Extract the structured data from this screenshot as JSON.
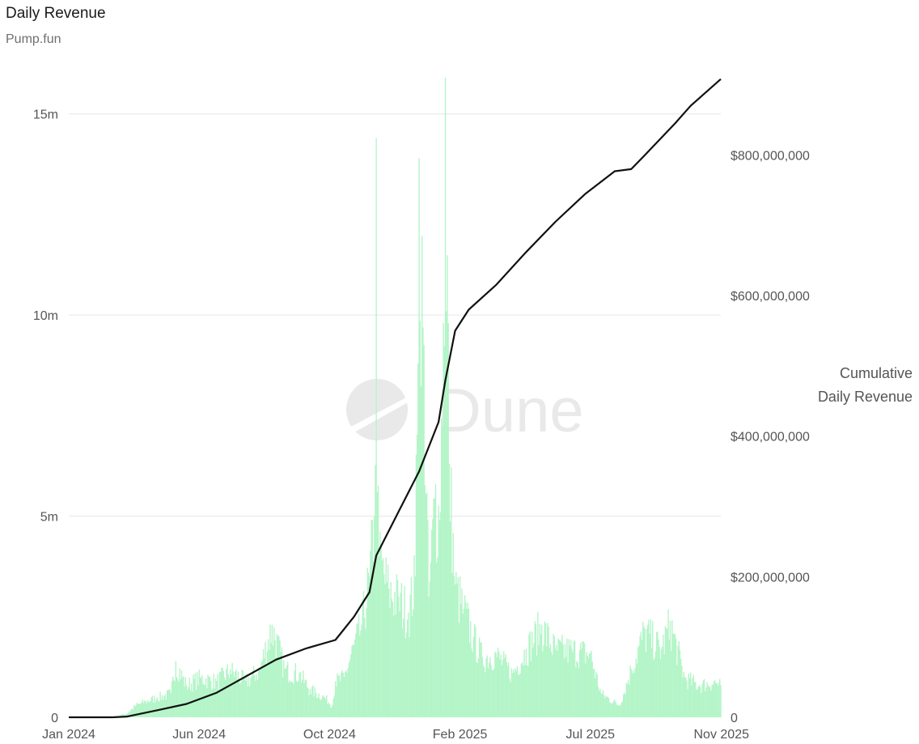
{
  "header": {
    "title": "Daily Revenue",
    "subtitle": "Pump.fun"
  },
  "watermark": "Dune",
  "colors": {
    "bars": "#b4f5c8",
    "line": "#111111",
    "grid": "#e6e6e6",
    "watermark": "#e9e9e9"
  },
  "chart_data": {
    "type": "bar+line",
    "title": "Daily Revenue",
    "subtitle": "Pump.fun",
    "x_axis": {
      "type": "date",
      "range": [
        "2024-01-01",
        "2025-11-01"
      ],
      "tick_labels": [
        "Jan 2024",
        "Jun 2024",
        "Oct 2024",
        "Feb 2025",
        "Jul 2025",
        "Nov 2025"
      ]
    },
    "y_left": {
      "range": [
        0,
        15900000
      ],
      "ticks": [
        0,
        5000000,
        10000000,
        15000000
      ],
      "tick_labels": [
        "0",
        "5m",
        "10m",
        "15m"
      ]
    },
    "y_right": {
      "title_lines": [
        "Cumulative",
        "Daily Revenue"
      ],
      "range": [
        0,
        910000000
      ],
      "ticks": [
        0,
        200000000,
        400000000,
        600000000,
        800000000
      ],
      "tick_labels": [
        "0",
        "$200,000,000",
        "$400,000,000",
        "$600,000,000",
        "$800,000,000"
      ]
    },
    "grid": true,
    "series": [
      {
        "type": "bar",
        "axis": "left",
        "color": "#b4f5c8",
        "points": [
          [
            "2024-01-01",
            0
          ],
          [
            "2024-02-15",
            0
          ],
          [
            "2024-03-01",
            100000
          ],
          [
            "2024-03-10",
            300000
          ],
          [
            "2024-03-20",
            400000
          ],
          [
            "2024-04-01",
            500000
          ],
          [
            "2024-04-15",
            600000
          ],
          [
            "2024-04-20",
            1400000
          ],
          [
            "2024-05-01",
            800000
          ],
          [
            "2024-05-15",
            1000000
          ],
          [
            "2024-06-01",
            900000
          ],
          [
            "2024-06-15",
            1200000
          ],
          [
            "2024-07-01",
            900000
          ],
          [
            "2024-07-15",
            1200000
          ],
          [
            "2024-07-28",
            2300000
          ],
          [
            "2024-08-10",
            1200000
          ],
          [
            "2024-08-25",
            1100000
          ],
          [
            "2024-09-05",
            700000
          ],
          [
            "2024-09-20",
            500000
          ],
          [
            "2024-09-28",
            300000
          ],
          [
            "2024-10-01",
            900000
          ],
          [
            "2024-10-10",
            1000000
          ],
          [
            "2024-10-20",
            1800000
          ],
          [
            "2024-10-28",
            2300000
          ],
          [
            "2024-11-05",
            3500000
          ],
          [
            "2024-11-10",
            5000000
          ],
          [
            "2024-11-12",
            14400000
          ],
          [
            "2024-11-15",
            4000000
          ],
          [
            "2024-11-25",
            3200000
          ],
          [
            "2024-12-05",
            3000000
          ],
          [
            "2024-12-15",
            2600000
          ],
          [
            "2024-12-22",
            3500000
          ],
          [
            "2024-12-26",
            13900000
          ],
          [
            "2025-01-05",
            3000000
          ],
          [
            "2025-01-12",
            5800000
          ],
          [
            "2025-01-16",
            4900000
          ],
          [
            "2025-01-20",
            9800000
          ],
          [
            "2025-01-22",
            15900000
          ],
          [
            "2025-01-26",
            6300000
          ],
          [
            "2025-02-01",
            3300000
          ],
          [
            "2025-02-10",
            2700000
          ],
          [
            "2025-02-20",
            2000000
          ],
          [
            "2025-03-01",
            1500000
          ],
          [
            "2025-03-15",
            1600000
          ],
          [
            "2025-04-01",
            1100000
          ],
          [
            "2025-04-15",
            1700000
          ],
          [
            "2025-05-01",
            2300000
          ],
          [
            "2025-05-15",
            1700000
          ],
          [
            "2025-06-01",
            1700000
          ],
          [
            "2025-06-20",
            1600000
          ],
          [
            "2025-07-01",
            600000
          ],
          [
            "2025-07-20",
            300000
          ],
          [
            "2025-08-01",
            1200000
          ],
          [
            "2025-08-15",
            2200000
          ],
          [
            "2025-09-01",
            1700000
          ],
          [
            "2025-09-10",
            2400000
          ],
          [
            "2025-09-25",
            1000000
          ],
          [
            "2025-10-10",
            800000
          ],
          [
            "2025-10-25",
            900000
          ],
          [
            "2025-11-01",
            800000
          ]
        ]
      },
      {
        "type": "line",
        "axis": "right",
        "name": "Cumulative Daily Revenue",
        "color": "#111111",
        "points": [
          [
            "2024-01-01",
            0
          ],
          [
            "2024-02-15",
            0
          ],
          [
            "2024-03-01",
            1000000
          ],
          [
            "2024-04-01",
            10000000
          ],
          [
            "2024-05-01",
            19000000
          ],
          [
            "2024-06-01",
            35000000
          ],
          [
            "2024-07-01",
            58000000
          ],
          [
            "2024-08-01",
            82000000
          ],
          [
            "2024-09-01",
            98000000
          ],
          [
            "2024-10-01",
            110000000
          ],
          [
            "2024-10-20",
            143000000
          ],
          [
            "2024-11-05",
            178000000
          ],
          [
            "2024-11-12",
            230000000
          ],
          [
            "2024-12-01",
            282000000
          ],
          [
            "2024-12-26",
            350000000
          ],
          [
            "2025-01-15",
            420000000
          ],
          [
            "2025-01-22",
            480000000
          ],
          [
            "2025-02-01",
            550000000
          ],
          [
            "2025-02-15",
            580000000
          ],
          [
            "2025-03-15",
            615000000
          ],
          [
            "2025-04-15",
            662000000
          ],
          [
            "2025-05-15",
            705000000
          ],
          [
            "2025-06-15",
            745000000
          ],
          [
            "2025-07-15",
            777000000
          ],
          [
            "2025-08-01",
            780000000
          ],
          [
            "2025-08-15",
            800000000
          ],
          [
            "2025-09-15",
            845000000
          ],
          [
            "2025-10-01",
            870000000
          ],
          [
            "2025-11-01",
            908000000
          ]
        ]
      }
    ]
  }
}
